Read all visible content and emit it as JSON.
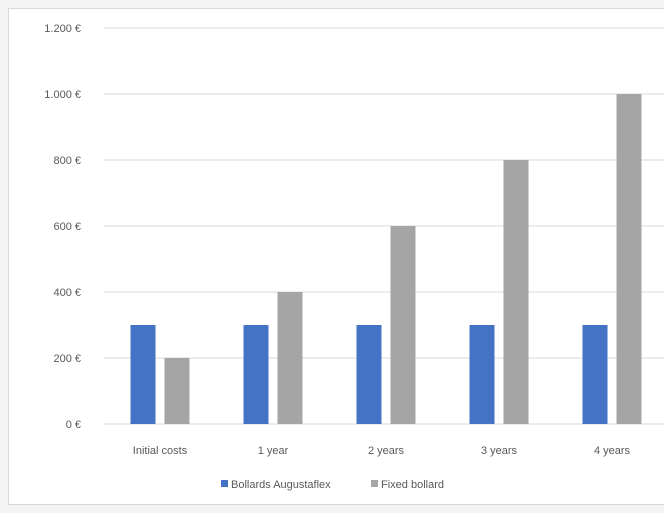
{
  "chart_data": {
    "type": "bar",
    "title": "",
    "xlabel": "",
    "ylabel": "",
    "categories": [
      "Initial costs",
      "1 year",
      "2 years",
      "3 years",
      "4 years"
    ],
    "series": [
      {
        "name": "Bollards Augustaflex",
        "color": "#4472c4",
        "values": [
          300,
          300,
          300,
          300,
          300
        ]
      },
      {
        "name": "Fixed bollard",
        "color": "#a5a5a5",
        "values": [
          200,
          400,
          600,
          800,
          1000
        ]
      }
    ],
    "ylim": [
      0,
      1200
    ],
    "yticks": [
      0,
      200,
      400,
      600,
      800,
      1000,
      1200
    ],
    "ytick_labels": [
      "0 €",
      "200 €",
      "400 €",
      "600 €",
      "800 €",
      "1.000 €",
      "1.200 €"
    ],
    "grid": true,
    "legend_position": "bottom"
  }
}
